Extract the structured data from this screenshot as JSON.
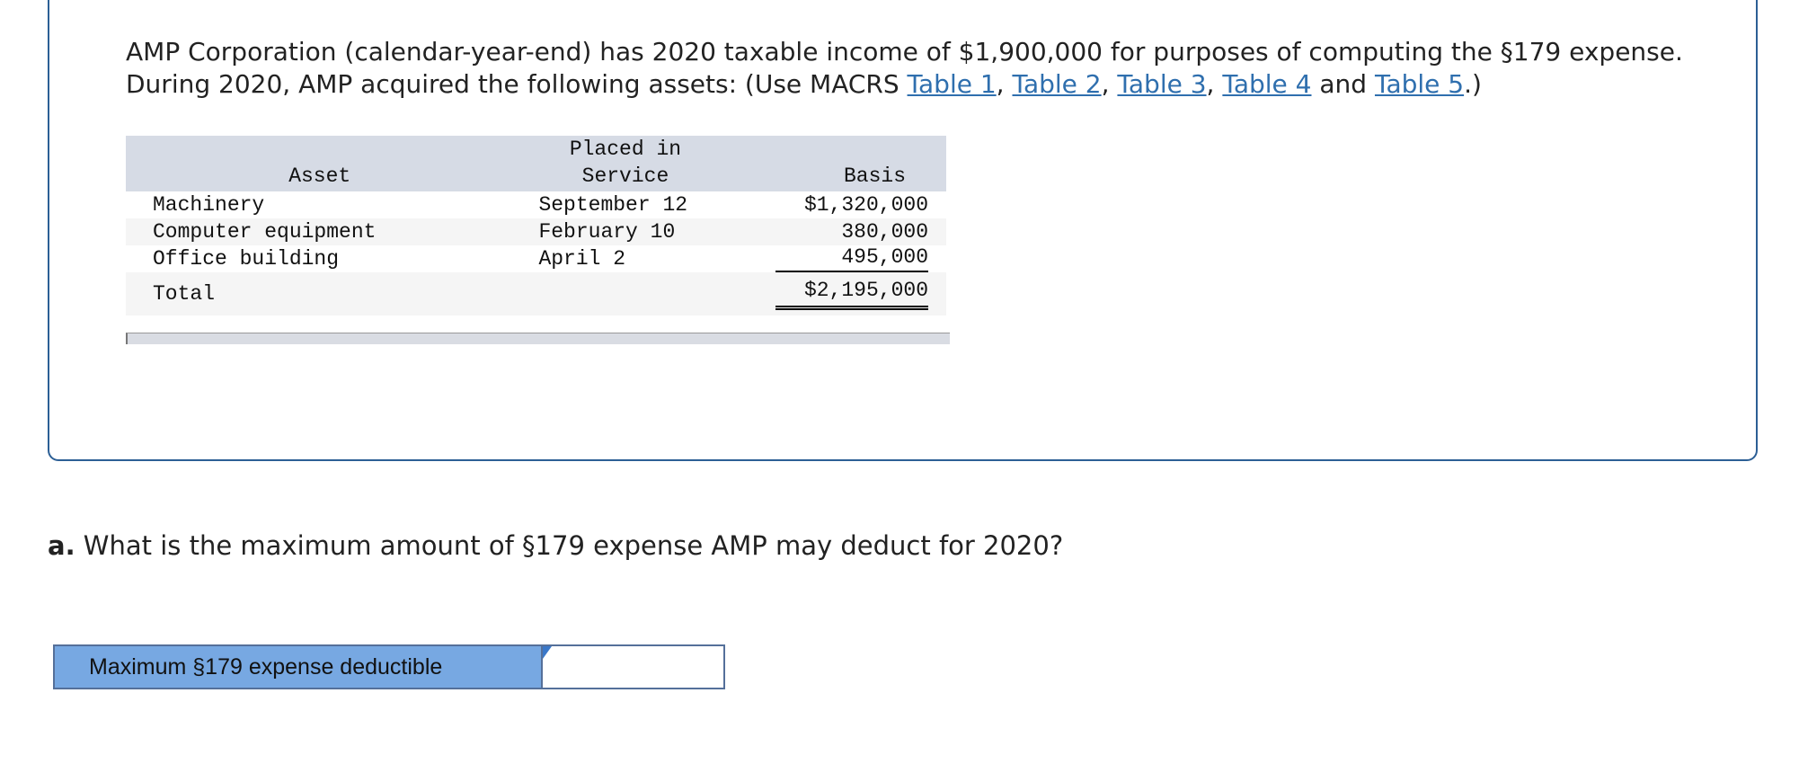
{
  "intro": {
    "segments": [
      {
        "text": "AMP Corporation (calendar-year-end) has 2020 taxable income of $1,900,000 for purposes of computing the §179 expense. During 2020, AMP acquired the following assets: (Use MACRS "
      },
      {
        "link": "Table 1"
      },
      {
        "text": ", "
      },
      {
        "link": "Table 2"
      },
      {
        "text": ", "
      },
      {
        "link": "Table 3"
      },
      {
        "text": ", "
      },
      {
        "link": "Table 4"
      },
      {
        "text": " and "
      },
      {
        "link": "Table 5"
      },
      {
        "text": ".)"
      }
    ]
  },
  "table": {
    "headers": [
      "Asset",
      "Placed in Service",
      "Basis"
    ],
    "rows": [
      [
        "Machinery",
        "September 12",
        "$1,320,000"
      ],
      [
        "Computer equipment",
        "February 10",
        "380,000"
      ],
      [
        "Office building",
        "April 2",
        "495,000"
      ]
    ],
    "total": [
      "Total",
      "$2,195,000"
    ]
  },
  "question": {
    "label": "a.",
    "text": " What is the maximum amount of §179 expense AMP may deduct for 2020?"
  },
  "answer": {
    "label": "Maximum §179 expense deductible"
  }
}
